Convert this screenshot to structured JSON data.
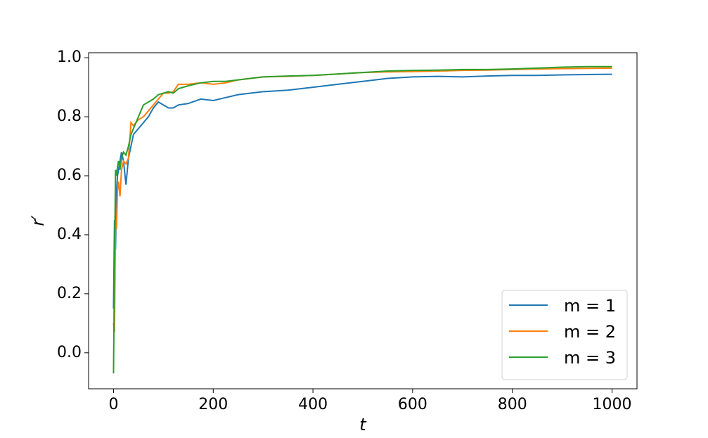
{
  "chart_data": {
    "type": "line",
    "x_label": "t",
    "y_label": "r′",
    "x": [
      0,
      2,
      4,
      6,
      8,
      10,
      13,
      16,
      20,
      25,
      30,
      35,
      40,
      50,
      60,
      70,
      80,
      90,
      100,
      110,
      120,
      130,
      150,
      175,
      200,
      225,
      250,
      300,
      350,
      400,
      450,
      500,
      550,
      600,
      650,
      700,
      750,
      800,
      850,
      900,
      950,
      1000
    ],
    "series": [
      {
        "name": "m = 1",
        "color": "#1f77b4",
        "values": [
          0.15,
          0.45,
          0.35,
          0.55,
          0.6,
          0.62,
          0.65,
          0.68,
          0.65,
          0.57,
          0.66,
          0.7,
          0.74,
          0.76,
          0.78,
          0.8,
          0.83,
          0.85,
          0.84,
          0.83,
          0.83,
          0.84,
          0.845,
          0.86,
          0.855,
          0.865,
          0.875,
          0.885,
          0.89,
          0.9,
          0.91,
          0.92,
          0.93,
          0.935,
          0.937,
          0.935,
          0.938,
          0.94,
          0.94,
          0.942,
          0.943,
          0.944
        ]
      },
      {
        "name": "m = 2",
        "color": "#ff7f0e",
        "values": [
          0.1,
          0.07,
          0.45,
          0.42,
          0.55,
          0.58,
          0.53,
          0.62,
          0.65,
          0.64,
          0.66,
          0.78,
          0.77,
          0.79,
          0.8,
          0.82,
          0.84,
          0.86,
          0.88,
          0.88,
          0.885,
          0.91,
          0.91,
          0.915,
          0.91,
          0.915,
          0.925,
          0.935,
          0.937,
          0.94,
          0.945,
          0.95,
          0.952,
          0.953,
          0.955,
          0.957,
          0.958,
          0.96,
          0.962,
          0.963,
          0.964,
          0.965
        ]
      },
      {
        "name": "m = 3",
        "color": "#2ca02c",
        "values": [
          -0.07,
          0.3,
          0.62,
          0.6,
          0.63,
          0.65,
          0.62,
          0.66,
          0.68,
          0.67,
          0.7,
          0.74,
          0.76,
          0.8,
          0.84,
          0.85,
          0.86,
          0.875,
          0.88,
          0.885,
          0.88,
          0.895,
          0.905,
          0.915,
          0.92,
          0.92,
          0.925,
          0.935,
          0.938,
          0.94,
          0.945,
          0.95,
          0.955,
          0.957,
          0.958,
          0.96,
          0.96,
          0.962,
          0.965,
          0.968,
          0.97,
          0.97
        ]
      }
    ],
    "xlim": [
      -50,
      1050
    ],
    "ylim": [
      -0.122,
      1.017
    ],
    "xticks": [
      0,
      200,
      400,
      600,
      800,
      1000
    ],
    "yticks": [
      {
        "value": 0,
        "label": "0.0"
      },
      0.2,
      0.4,
      0.6,
      0.8,
      {
        "value": 1,
        "label": "1.0"
      }
    ],
    "legend": "lower right"
  }
}
